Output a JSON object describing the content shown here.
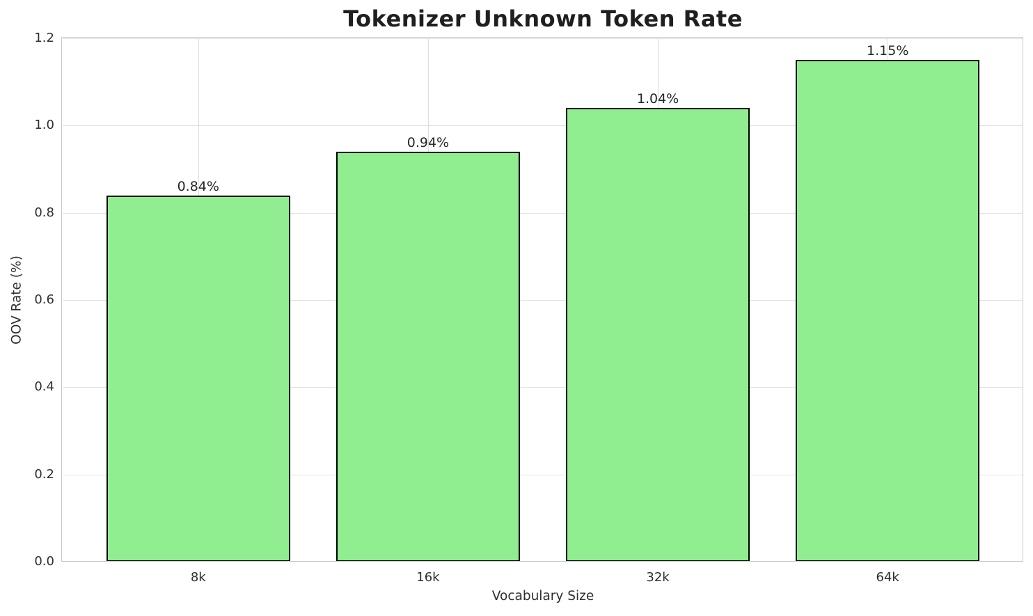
{
  "chart_data": {
    "type": "bar",
    "title": "Tokenizer Unknown Token Rate",
    "xlabel": "Vocabulary Size",
    "ylabel": "OOV Rate (%)",
    "categories": [
      "8k",
      "16k",
      "32k",
      "64k"
    ],
    "values": [
      0.84,
      0.94,
      1.04,
      1.15
    ],
    "bar_labels": [
      "0.84%",
      "0.94%",
      "1.04%",
      "1.15%"
    ],
    "ylim": [
      0.0,
      1.2
    ],
    "yticks": [
      0.0,
      0.2,
      0.4,
      0.6,
      0.8,
      1.0,
      1.2
    ],
    "ytick_labels": [
      "0.0",
      "0.2",
      "0.4",
      "0.6",
      "0.8",
      "1.0",
      "1.2"
    ],
    "grid": true,
    "legend": false,
    "bar_fill_color": "#90EE90",
    "bar_edge_color": "#000000",
    "grid_color": "#e2e2e2",
    "spine_color": "#c8c8c8",
    "text_color": "#262626",
    "background_color": "#ffffff"
  }
}
